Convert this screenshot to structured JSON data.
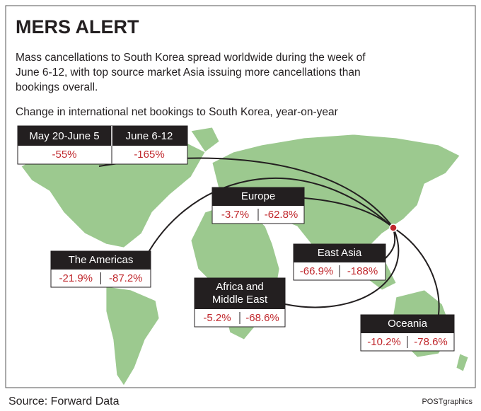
{
  "header": {
    "title": "MERS ALERT",
    "description_lines": [
      "Mass cancellations to South Korea spread worldwide during the week of",
      "June 6-12, with top source market Asia issuing more cancellations than",
      "bookings overall."
    ],
    "subtitle": "Change in international net bookings to South Korea, year-on-year"
  },
  "overall": {
    "columns": [
      "May 20-June 5",
      "June 6-12"
    ],
    "values": [
      "-55%",
      "-165%"
    ]
  },
  "regions": [
    {
      "name_lines": [
        "Europe"
      ],
      "values": [
        "-3.7%",
        "-62.8%"
      ]
    },
    {
      "name_lines": [
        "The Americas"
      ],
      "values": [
        "-21.9%",
        "-87.2%"
      ]
    },
    {
      "name_lines": [
        "East Asia"
      ],
      "values": [
        "-66.9%",
        "-188%"
      ]
    },
    {
      "name_lines": [
        "Africa and",
        "Middle East"
      ],
      "values": [
        "-5.2%",
        "-68.6%"
      ]
    },
    {
      "name_lines": [
        "Oceania"
      ],
      "values": [
        "-10.2%",
        "-78.6%"
      ]
    }
  ],
  "footer": {
    "source": "Source: Forward Data",
    "credit": "POSTgraphics"
  }
}
